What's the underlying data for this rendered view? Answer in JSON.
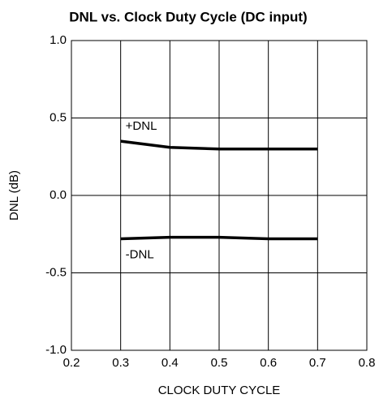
{
  "chart_data": {
    "type": "line",
    "title": "DNL vs. Clock Duty Cycle (DC input)",
    "x_label": "CLOCK DUTY CYCLE",
    "y_label": "DNL (dB)",
    "x": [
      0.3,
      0.4,
      0.5,
      0.6,
      0.7
    ],
    "series": [
      {
        "name": "+DNL",
        "color": "#000000",
        "values": [
          0.35,
          0.31,
          0.3,
          0.3,
          0.3
        ]
      },
      {
        "name": "-DNL",
        "color": "#000000",
        "values": [
          -0.28,
          -0.27,
          -0.27,
          -0.28,
          -0.28
        ]
      }
    ],
    "xlim": [
      0.2,
      0.8
    ],
    "xticks": [
      0.2,
      0.3,
      0.4,
      0.5,
      0.6,
      0.7,
      0.8
    ],
    "ylim": [
      -1.0,
      1.0
    ],
    "yticks": [
      {
        "value": -1.0,
        "label": "-1.0"
      },
      {
        "value": -0.5,
        "label": "-0.5"
      },
      {
        "value": 0,
        "label": "0.0"
      },
      {
        "value": 0.5,
        "label": "0.5"
      },
      {
        "value": 1.0,
        "label": "1.0"
      }
    ],
    "grid": true
  }
}
